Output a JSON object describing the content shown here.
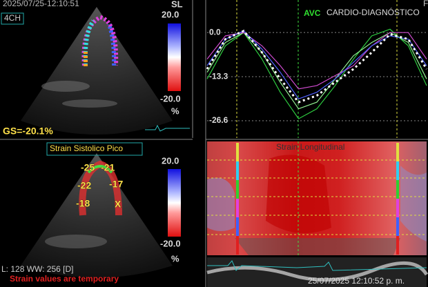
{
  "top_left": {
    "timestamp": "2025/07/25-12:10:51",
    "view": "4CH",
    "mode": "SL",
    "scale_max": "20.0",
    "scale_min": "-20.0",
    "scale_unit": "%",
    "global_strain": "GS=-20.1%"
  },
  "bottom_left": {
    "title": "Strain Sistolico Pico",
    "segments": [
      "-25",
      "-21",
      "-22",
      "-17",
      "-18",
      "X"
    ],
    "scale_max": "20.0",
    "scale_min": "-20.0",
    "scale_unit": "%",
    "window": "L: 128 WW: 256 [D]",
    "warning": "Strain values are temporary"
  },
  "strain_graph": {
    "label_f": "F",
    "event": "AVC",
    "clinic": "CARDIO-DIAGNÓSTICO",
    "ylim": [
      -31.8,
      9.4
    ],
    "yticks": [
      {
        "value": 0,
        "label": "0.0"
      },
      {
        "value": -13.3,
        "label": "-13.3"
      },
      {
        "value": -26.6,
        "label": "-26.6"
      }
    ],
    "series": [
      {
        "color": "#2ecc40",
        "values": [
          -14,
          -4,
          0,
          -8,
          -18,
          -26,
          -23,
          -16,
          -8,
          -1,
          1,
          -4,
          -16
        ]
      },
      {
        "color": "#90ee90",
        "values": [
          -12,
          -3,
          0,
          -6,
          -15,
          -23,
          -21,
          -14,
          -7,
          -3,
          0,
          -3,
          -14
        ]
      },
      {
        "color": "#d04bd0",
        "values": [
          -8,
          -1,
          0,
          -4,
          -10,
          -17,
          -16,
          -13,
          -10,
          -4,
          0,
          0,
          -8
        ]
      },
      {
        "color": "#5060ff",
        "values": [
          -10,
          -2,
          0.5,
          -5,
          -12,
          -20,
          -18,
          -14,
          -9,
          -4,
          -1,
          -2,
          -10
        ]
      },
      {
        "color": "#ffffff",
        "values": [
          -11,
          -2,
          0.5,
          -6,
          -14,
          -21,
          -19,
          -15,
          -11,
          -6,
          -0.5,
          -2,
          -11
        ]
      }
    ]
  },
  "strain_map": {
    "title": "Strain Longitudinal"
  },
  "footer": {
    "timestamp": "25/07/2025 12:10:52 p. m."
  }
}
